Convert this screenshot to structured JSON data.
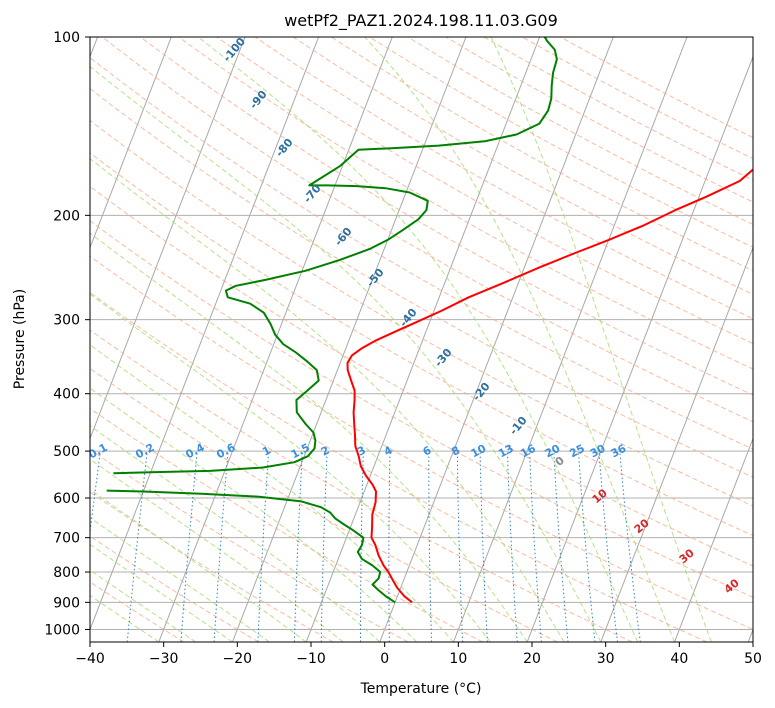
{
  "chart_data": {
    "type": "line",
    "title": "wetPf2_PAZ1.2024.198.11.03.G09",
    "xlabel": "Temperature (°C)",
    "ylabel": "Pressure (hPa)",
    "xlim": [
      -40,
      50
    ],
    "ylim": [
      1050,
      100
    ],
    "y_scale": "log",
    "grid": true,
    "x_ticks": [
      "−40",
      "−30",
      "−20",
      "−10",
      "0",
      "10",
      "20",
      "30",
      "40",
      "50"
    ],
    "y_ticks": [
      "100",
      "200",
      "300",
      "400",
      "500",
      "600",
      "700",
      "800",
      "900",
      "1000"
    ],
    "colors": {
      "temperature": "#ff0000",
      "dewpoint": "#008000",
      "dry_adiabat": "#f4a582",
      "moist_adiabat": "#a6d96a",
      "mixing_ratio": "#1f77b4",
      "isotherm": "#999999"
    },
    "series": [
      {
        "role": "temperature",
        "points": [
          [
            2.3,
            900
          ],
          [
            1,
            880
          ],
          [
            -0.5,
            850
          ],
          [
            -1.7,
            820
          ],
          [
            -2.5,
            800
          ],
          [
            -3.5,
            780
          ],
          [
            -4.7,
            750
          ],
          [
            -5.7,
            720
          ],
          [
            -6.6,
            700
          ],
          [
            -7.1,
            670
          ],
          [
            -7.7,
            640
          ],
          [
            -7.9,
            610
          ],
          [
            -8.4,
            585
          ],
          [
            -9.2,
            570
          ],
          [
            -10.6,
            550
          ],
          [
            -11.8,
            530
          ],
          [
            -12.6,
            510
          ],
          [
            -13.6,
            490
          ],
          [
            -14.2,
            470
          ],
          [
            -14.9,
            450
          ],
          [
            -15.6,
            430
          ],
          [
            -16.1,
            410
          ],
          [
            -16.6,
            395
          ],
          [
            -17.6,
            380
          ],
          [
            -18.6,
            365
          ],
          [
            -19,
            355
          ],
          [
            -18.8,
            345
          ],
          [
            -17.8,
            335
          ],
          [
            -16.3,
            325
          ],
          [
            -14.3,
            315
          ],
          [
            -11.8,
            303
          ],
          [
            -9,
            290
          ],
          [
            -6,
            275
          ],
          [
            -2,
            260
          ],
          [
            2,
            245
          ],
          [
            6,
            232
          ],
          [
            10,
            220
          ],
          [
            14,
            208
          ],
          [
            17.5,
            196
          ],
          [
            21,
            186
          ],
          [
            24.7,
            175
          ],
          [
            26.3,
            165
          ],
          [
            27,
            158
          ],
          [
            28.1,
            150
          ],
          [
            29,
            142
          ],
          [
            30.4,
            134
          ],
          [
            32.2,
            127
          ],
          [
            34.5,
            121
          ],
          [
            37,
            115
          ],
          [
            39.8,
            109
          ],
          [
            42,
            105
          ],
          [
            44,
            101
          ],
          [
            44.3,
            100
          ]
        ]
      },
      {
        "role": "dewpoint",
        "points": [
          [
            0,
            900
          ],
          [
            -1.5,
            880
          ],
          [
            -2.8,
            860
          ],
          [
            -4,
            840
          ],
          [
            -3.5,
            820
          ],
          [
            -3.6,
            800
          ],
          [
            -5,
            780
          ],
          [
            -6.8,
            760
          ],
          [
            -7.7,
            740
          ],
          [
            -7.5,
            720
          ],
          [
            -7.7,
            700
          ],
          [
            -9.5,
            680
          ],
          [
            -11,
            665
          ],
          [
            -12.5,
            650
          ],
          [
            -13.5,
            635
          ],
          [
            -15,
            622
          ],
          [
            -18,
            608
          ],
          [
            -24,
            597
          ],
          [
            -32,
            590
          ],
          [
            -40,
            585
          ],
          [
            -45,
            583
          ]
        ]
      },
      {
        "role": "dewpoint",
        "points": [
          [
            -45,
            545
          ],
          [
            -40,
            543
          ],
          [
            -32,
            540
          ],
          [
            -25,
            533
          ],
          [
            -21,
            522
          ],
          [
            -19.5,
            510
          ],
          [
            -19,
            495
          ],
          [
            -19.3,
            480
          ],
          [
            -20,
            465
          ],
          [
            -21.5,
            450
          ],
          [
            -23.3,
            430
          ],
          [
            -24,
            410
          ],
          [
            -23,
            395
          ],
          [
            -22,
            380
          ],
          [
            -22.8,
            365
          ],
          [
            -24.7,
            352
          ],
          [
            -26.7,
            340
          ],
          [
            -28.7,
            330
          ],
          [
            -30.3,
            318
          ],
          [
            -31.5,
            305
          ],
          [
            -33,
            292
          ],
          [
            -35.3,
            282
          ],
          [
            -38.7,
            275
          ],
          [
            -39.3,
            268
          ],
          [
            -38.2,
            263
          ],
          [
            -34.5,
            257
          ],
          [
            -29.5,
            248
          ],
          [
            -25.5,
            238
          ],
          [
            -22,
            228
          ],
          [
            -20,
            220
          ],
          [
            -18.5,
            212
          ],
          [
            -16.9,
            203
          ],
          [
            -16.3,
            196
          ],
          [
            -16.6,
            189
          ],
          [
            -19.5,
            183
          ],
          [
            -23,
            180
          ],
          [
            -27,
            178.5
          ],
          [
            -31,
            178
          ],
          [
            -33.5,
            178
          ],
          [
            -30.3,
            165
          ],
          [
            -28.7,
            155
          ],
          [
            -24,
            154
          ],
          [
            -18,
            152.5
          ],
          [
            -12,
            150
          ],
          [
            -8,
            146
          ],
          [
            -5.5,
            140
          ],
          [
            -5,
            133
          ],
          [
            -5.2,
            127
          ],
          [
            -5.8,
            121
          ],
          [
            -6.3,
            115
          ],
          [
            -6.5,
            109
          ],
          [
            -7.3,
            105
          ],
          [
            -8.8,
            101.5
          ],
          [
            -9.3,
            100
          ]
        ]
      }
    ],
    "mixing_ratio_lines": {
      "values": [
        0.1,
        0.2,
        0.4,
        0.6,
        1,
        1.5,
        2,
        3,
        4,
        6,
        8,
        10,
        13,
        16,
        20,
        25,
        30,
        36
      ],
      "labels": [
        "0.1",
        "0.2",
        "0.4",
        "0.6",
        "1",
        "1.5",
        "2",
        "3",
        "4",
        "6",
        "8",
        "10",
        "13",
        "16",
        "20",
        "25",
        "30",
        "36"
      ]
    },
    "dry_adiabat_labels": [
      "-100",
      "-90",
      "-80",
      "-70",
      "-60",
      "-50",
      "-40",
      "-30",
      "-20",
      "-10"
    ],
    "moist_adiabat_labels": [
      "0",
      "10",
      "20",
      "30",
      "40"
    ]
  }
}
